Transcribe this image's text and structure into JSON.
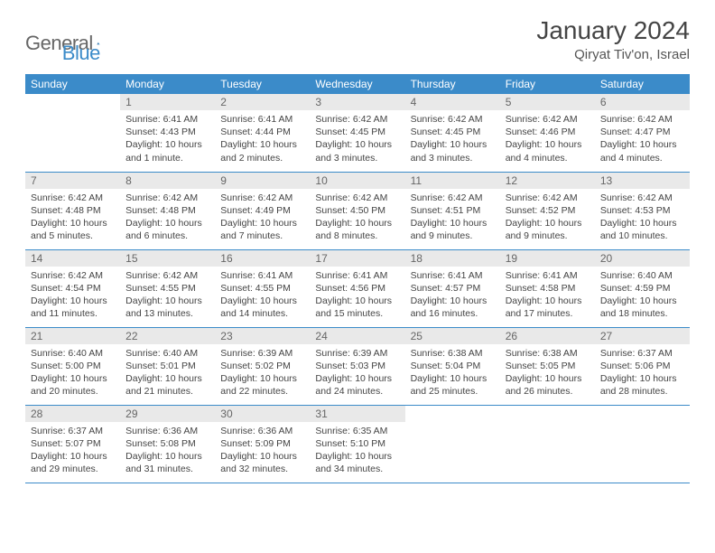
{
  "brand": {
    "part1": "General",
    "part2": "Blue"
  },
  "title": "January 2024",
  "location": "Qiryat Tiv'on, Israel",
  "colors": {
    "header_bg": "#3b8bc9",
    "header_text": "#ffffff",
    "daynum_bg": "#e9e9e9",
    "row_divider": "#3b8bc9",
    "logo_gray": "#666666",
    "logo_blue": "#3b8bc9",
    "page_bg": "#ffffff"
  },
  "weekdays": [
    "Sunday",
    "Monday",
    "Tuesday",
    "Wednesday",
    "Thursday",
    "Friday",
    "Saturday"
  ],
  "weeks": [
    [
      {
        "n": "",
        "sr": "",
        "ss": "",
        "dl": ""
      },
      {
        "n": "1",
        "sr": "6:41 AM",
        "ss": "4:43 PM",
        "dl": "10 hours and 1 minute."
      },
      {
        "n": "2",
        "sr": "6:41 AM",
        "ss": "4:44 PM",
        "dl": "10 hours and 2 minutes."
      },
      {
        "n": "3",
        "sr": "6:42 AM",
        "ss": "4:45 PM",
        "dl": "10 hours and 3 minutes."
      },
      {
        "n": "4",
        "sr": "6:42 AM",
        "ss": "4:45 PM",
        "dl": "10 hours and 3 minutes."
      },
      {
        "n": "5",
        "sr": "6:42 AM",
        "ss": "4:46 PM",
        "dl": "10 hours and 4 minutes."
      },
      {
        "n": "6",
        "sr": "6:42 AM",
        "ss": "4:47 PM",
        "dl": "10 hours and 4 minutes."
      }
    ],
    [
      {
        "n": "7",
        "sr": "6:42 AM",
        "ss": "4:48 PM",
        "dl": "10 hours and 5 minutes."
      },
      {
        "n": "8",
        "sr": "6:42 AM",
        "ss": "4:48 PM",
        "dl": "10 hours and 6 minutes."
      },
      {
        "n": "9",
        "sr": "6:42 AM",
        "ss": "4:49 PM",
        "dl": "10 hours and 7 minutes."
      },
      {
        "n": "10",
        "sr": "6:42 AM",
        "ss": "4:50 PM",
        "dl": "10 hours and 8 minutes."
      },
      {
        "n": "11",
        "sr": "6:42 AM",
        "ss": "4:51 PM",
        "dl": "10 hours and 9 minutes."
      },
      {
        "n": "12",
        "sr": "6:42 AM",
        "ss": "4:52 PM",
        "dl": "10 hours and 9 minutes."
      },
      {
        "n": "13",
        "sr": "6:42 AM",
        "ss": "4:53 PM",
        "dl": "10 hours and 10 minutes."
      }
    ],
    [
      {
        "n": "14",
        "sr": "6:42 AM",
        "ss": "4:54 PM",
        "dl": "10 hours and 11 minutes."
      },
      {
        "n": "15",
        "sr": "6:42 AM",
        "ss": "4:55 PM",
        "dl": "10 hours and 13 minutes."
      },
      {
        "n": "16",
        "sr": "6:41 AM",
        "ss": "4:55 PM",
        "dl": "10 hours and 14 minutes."
      },
      {
        "n": "17",
        "sr": "6:41 AM",
        "ss": "4:56 PM",
        "dl": "10 hours and 15 minutes."
      },
      {
        "n": "18",
        "sr": "6:41 AM",
        "ss": "4:57 PM",
        "dl": "10 hours and 16 minutes."
      },
      {
        "n": "19",
        "sr": "6:41 AM",
        "ss": "4:58 PM",
        "dl": "10 hours and 17 minutes."
      },
      {
        "n": "20",
        "sr": "6:40 AM",
        "ss": "4:59 PM",
        "dl": "10 hours and 18 minutes."
      }
    ],
    [
      {
        "n": "21",
        "sr": "6:40 AM",
        "ss": "5:00 PM",
        "dl": "10 hours and 20 minutes."
      },
      {
        "n": "22",
        "sr": "6:40 AM",
        "ss": "5:01 PM",
        "dl": "10 hours and 21 minutes."
      },
      {
        "n": "23",
        "sr": "6:39 AM",
        "ss": "5:02 PM",
        "dl": "10 hours and 22 minutes."
      },
      {
        "n": "24",
        "sr": "6:39 AM",
        "ss": "5:03 PM",
        "dl": "10 hours and 24 minutes."
      },
      {
        "n": "25",
        "sr": "6:38 AM",
        "ss": "5:04 PM",
        "dl": "10 hours and 25 minutes."
      },
      {
        "n": "26",
        "sr": "6:38 AM",
        "ss": "5:05 PM",
        "dl": "10 hours and 26 minutes."
      },
      {
        "n": "27",
        "sr": "6:37 AM",
        "ss": "5:06 PM",
        "dl": "10 hours and 28 minutes."
      }
    ],
    [
      {
        "n": "28",
        "sr": "6:37 AM",
        "ss": "5:07 PM",
        "dl": "10 hours and 29 minutes."
      },
      {
        "n": "29",
        "sr": "6:36 AM",
        "ss": "5:08 PM",
        "dl": "10 hours and 31 minutes."
      },
      {
        "n": "30",
        "sr": "6:36 AM",
        "ss": "5:09 PM",
        "dl": "10 hours and 32 minutes."
      },
      {
        "n": "31",
        "sr": "6:35 AM",
        "ss": "5:10 PM",
        "dl": "10 hours and 34 minutes."
      },
      {
        "n": "",
        "sr": "",
        "ss": "",
        "dl": ""
      },
      {
        "n": "",
        "sr": "",
        "ss": "",
        "dl": ""
      },
      {
        "n": "",
        "sr": "",
        "ss": "",
        "dl": ""
      }
    ]
  ],
  "labels": {
    "sunrise": "Sunrise:",
    "sunset": "Sunset:",
    "daylight": "Daylight:"
  }
}
